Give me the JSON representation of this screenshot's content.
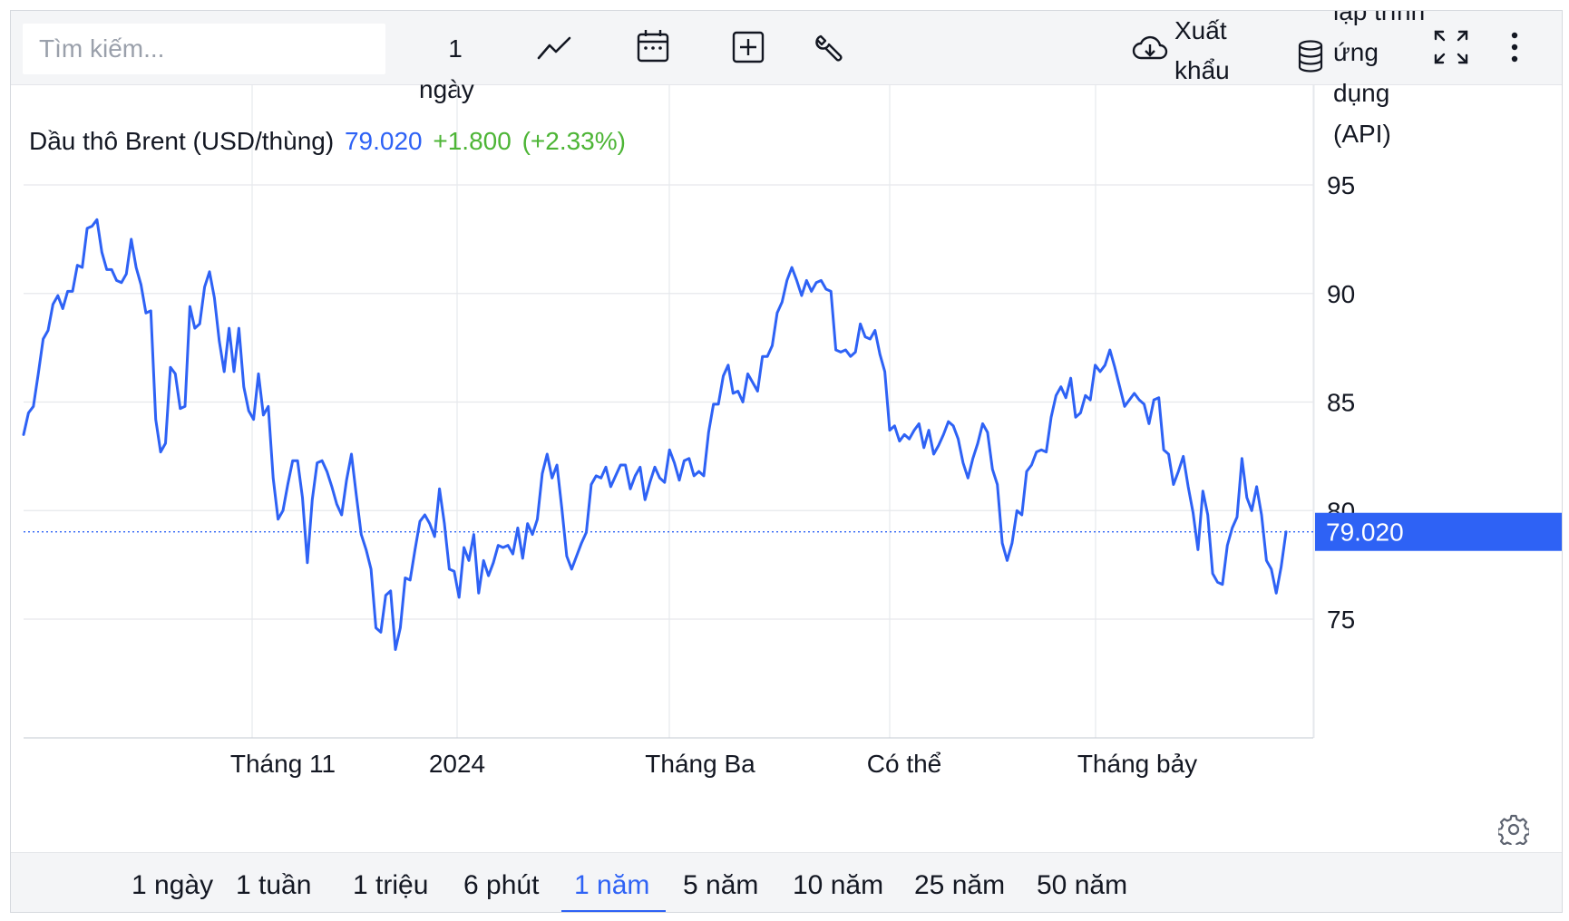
{
  "toolbar": {
    "search_placeholder": "Tìm kiếm...",
    "interval_value": "1",
    "interval_unit": "ngày",
    "export_label": "Xuất khẩu",
    "api_label": "lập trình ứng dụng (API)"
  },
  "legend": {
    "symbol_name": "Dầu thô Brent (USD/thùng)",
    "last_price": "79.020",
    "change": "+1.800",
    "change_pct": "(+2.33%)"
  },
  "price_label": "79.020",
  "periods": [
    {
      "label": "1 ngày",
      "active": false
    },
    {
      "label": "1 tuần",
      "active": false
    },
    {
      "label": "1 triệu",
      "active": false
    },
    {
      "label": "6 phút",
      "active": false
    },
    {
      "label": "1 năm",
      "active": true
    },
    {
      "label": "5 năm",
      "active": false
    },
    {
      "label": "10 năm",
      "active": false
    },
    {
      "label": "25 năm",
      "active": false
    },
    {
      "label": "50 năm",
      "active": false
    }
  ],
  "colors": {
    "line": "#2e62f5",
    "change_positive": "#4db536",
    "grid": "#e6e8ec",
    "axis_text": "#131722"
  },
  "icons": [
    "chart-line-icon",
    "calendar-icon",
    "plus-square-icon",
    "wrench-icon",
    "cloud-download-icon",
    "database-icon",
    "fullscreen-icon",
    "more-vertical-icon",
    "gear-icon"
  ],
  "chart_data": {
    "type": "line",
    "title": "Dầu thô Brent (USD/thùng)",
    "xlabel": "",
    "ylabel": "",
    "ylim": [
      70,
      98
    ],
    "yticks": [
      75,
      80,
      85,
      90,
      95
    ],
    "grid": true,
    "x_tick_labels": [
      "Tháng 11",
      "2024",
      "Tháng Ba",
      "Có thể",
      "Tháng bảy"
    ],
    "last_value": 79.02,
    "series": [
      {
        "values": [
          83.5,
          84.5,
          84.8,
          86.3,
          87.9,
          88.3,
          89.5,
          89.9,
          89.3,
          90.1,
          90.1,
          91.3,
          91.2,
          93.0,
          93.1,
          93.4,
          91.9,
          91.1,
          91.1,
          90.6,
          90.5,
          90.9,
          92.5,
          91.2,
          90.4,
          89.1,
          89.2,
          84.2,
          82.7,
          83.1,
          86.6,
          86.3,
          84.7,
          84.8,
          89.4,
          88.4,
          88.6,
          90.3,
          91.0,
          89.8,
          87.8,
          86.4,
          88.4,
          86.4,
          88.4,
          85.7,
          84.6,
          84.2,
          86.3,
          84.4,
          84.8,
          81.5,
          79.6,
          80.0,
          81.2,
          82.3,
          82.3,
          80.6,
          77.6,
          80.5,
          82.2,
          82.3,
          81.8,
          81.1,
          80.3,
          79.8,
          81.4,
          82.6,
          80.7,
          78.9,
          78.2,
          77.3,
          74.6,
          74.4,
          76.1,
          76.3,
          73.6,
          74.6,
          76.9,
          76.8,
          78.2,
          79.5,
          79.8,
          79.4,
          78.8,
          81.0,
          79.4,
          77.3,
          77.2,
          76.0,
          78.3,
          77.7,
          78.9,
          76.2,
          77.7,
          77.0,
          77.6,
          78.4,
          78.3,
          78.4,
          78.0,
          79.2,
          77.8,
          79.4,
          78.9,
          79.6,
          81.7,
          82.6,
          81.5,
          82.1,
          80.1,
          77.9,
          77.3,
          77.9,
          78.5,
          79.0,
          81.2,
          81.6,
          81.5,
          82.0,
          81.1,
          81.6,
          82.1,
          82.1,
          81.0,
          81.6,
          82.0,
          80.5,
          81.3,
          82.0,
          81.5,
          81.3,
          82.8,
          82.2,
          81.4,
          82.3,
          82.4,
          81.6,
          81.8,
          81.6,
          83.6,
          84.9,
          84.9,
          86.2,
          86.7,
          85.4,
          85.5,
          85.0,
          86.3,
          85.9,
          85.5,
          87.1,
          87.1,
          87.6,
          89.1,
          89.6,
          90.6,
          91.2,
          90.6,
          89.9,
          90.6,
          90.1,
          90.5,
          90.6,
          90.2,
          90.1,
          87.4,
          87.3,
          87.4,
          87.1,
          87.3,
          88.6,
          88.0,
          87.9,
          88.3,
          87.2,
          86.4,
          83.7,
          83.9,
          83.2,
          83.5,
          83.3,
          83.7,
          84.0,
          82.9,
          83.7,
          82.6,
          83.0,
          83.5,
          84.1,
          83.9,
          83.3,
          82.2,
          81.5,
          82.4,
          83.1,
          84.0,
          83.6,
          81.9,
          81.2,
          78.5,
          77.7,
          78.5,
          80.0,
          79.8,
          81.8,
          82.1,
          82.7,
          82.8,
          82.7,
          84.3,
          85.3,
          85.7,
          85.2,
          86.1,
          84.3,
          84.5,
          85.3,
          85.1,
          86.7,
          86.4,
          86.7,
          87.4,
          86.6,
          85.7,
          84.8,
          85.1,
          85.4,
          85.1,
          84.9,
          84.0,
          85.1,
          85.2,
          82.8,
          82.6,
          81.2,
          81.8,
          82.5,
          81.1,
          79.9,
          78.2,
          80.9,
          79.8,
          77.1,
          76.7,
          76.6,
          78.4,
          79.2,
          79.7,
          82.4,
          80.6,
          80.0,
          81.1,
          79.8,
          77.7,
          77.3,
          76.2,
          77.4,
          79.02
        ]
      }
    ]
  }
}
